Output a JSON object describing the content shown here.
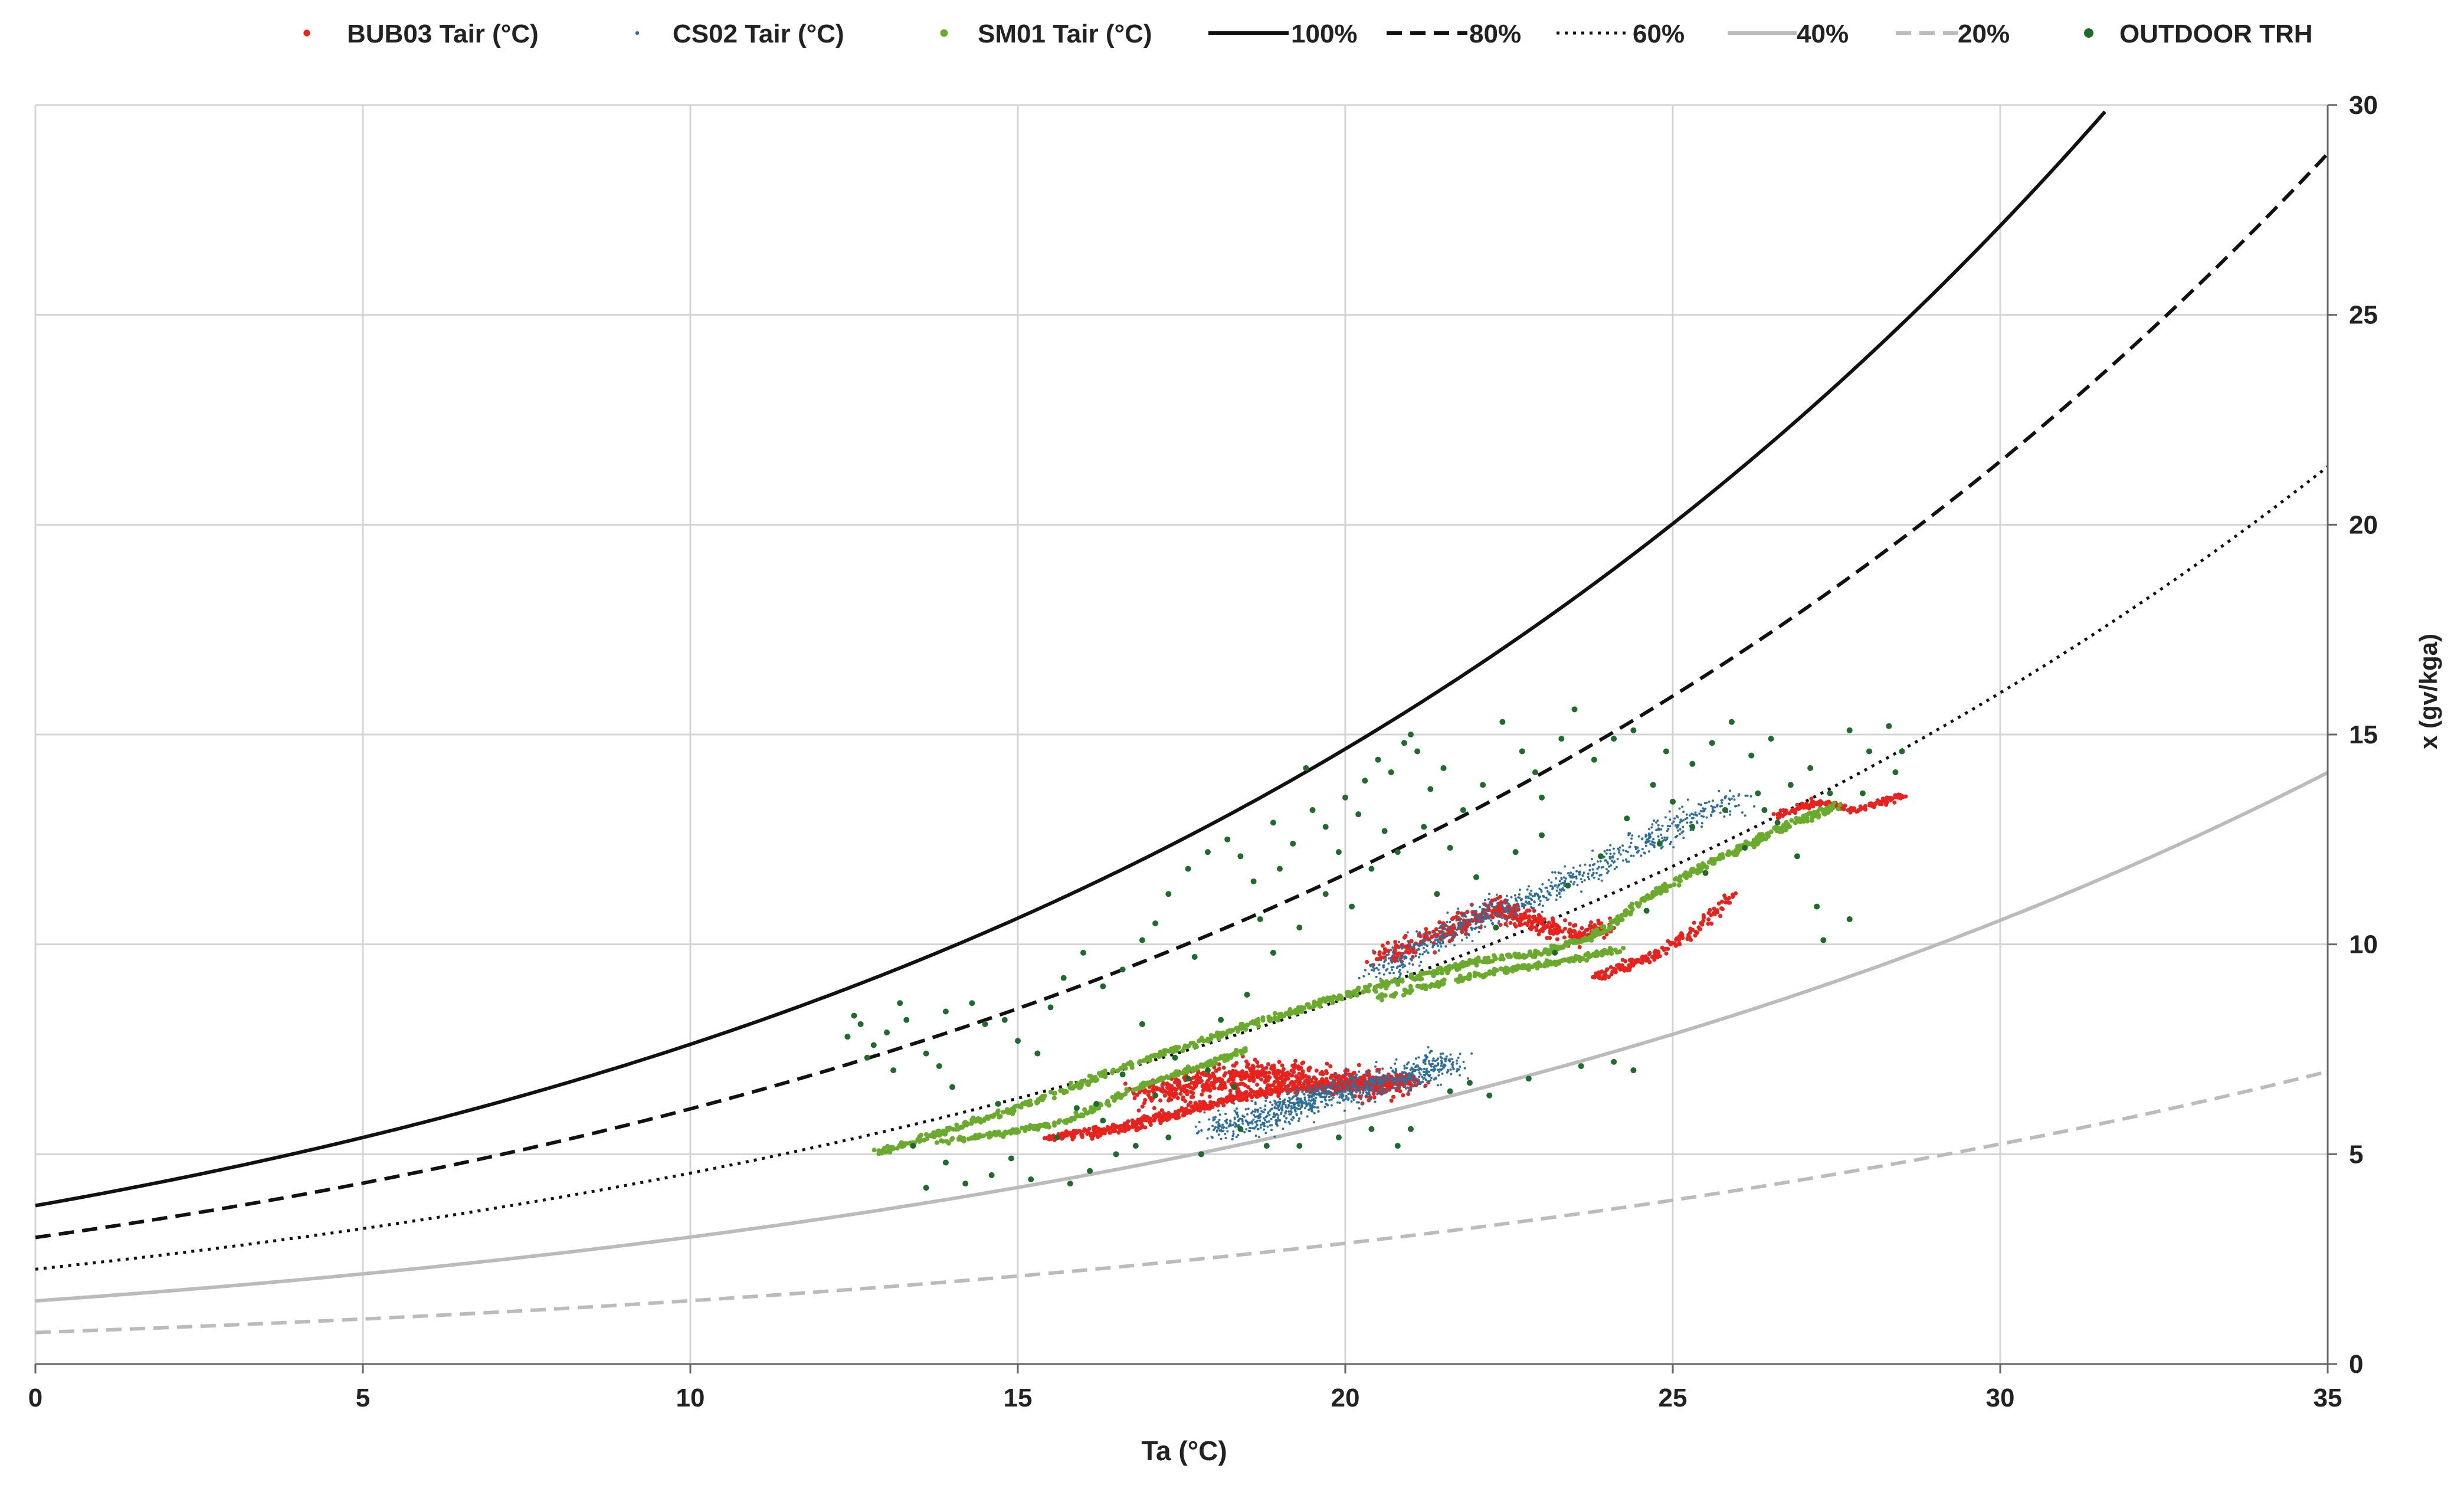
{
  "chart_data": {
    "type": "scatter",
    "title": "",
    "xlabel": "Ta (°C)",
    "ylabel": "x (gv/kga)",
    "xlim": [
      0,
      35
    ],
    "ylim": [
      0,
      30
    ],
    "xticks": [
      0,
      5,
      10,
      15,
      20,
      25,
      30,
      35
    ],
    "xtick_labels": [
      "0",
      "5",
      "10",
      "15",
      "20",
      "25",
      "30",
      "35"
    ],
    "yticks": [
      0,
      5,
      10,
      15,
      20,
      25,
      30
    ],
    "ytick_labels": [
      "0",
      "5",
      "10",
      "15",
      "20",
      "25",
      "30"
    ],
    "y_axis_side": "right",
    "grid": true,
    "legend_position": "top",
    "legend": [
      {
        "label": "BUB03 Tair (°C)",
        "kind": "marker",
        "color": "#e8221c",
        "size": 7
      },
      {
        "label": "CS02 Tair (°C)",
        "kind": "marker",
        "color": "#2e6f9a",
        "size": 4
      },
      {
        "label": "SM01 Tair (°C)",
        "kind": "marker",
        "color": "#6aaa2c",
        "size": 8
      },
      {
        "label": "100%",
        "kind": "line",
        "color": "#111111",
        "dash": "solid"
      },
      {
        "label": "80%",
        "kind": "line",
        "color": "#111111",
        "dash": "dashed"
      },
      {
        "label": "60%",
        "kind": "line",
        "color": "#111111",
        "dash": "dotted"
      },
      {
        "label": "40%",
        "kind": "line",
        "color": "#bbbbbb",
        "dash": "solid"
      },
      {
        "label": "20%",
        "kind": "line",
        "color": "#bbbbbb",
        "dash": "dashed"
      },
      {
        "label": "OUTDOOR TRH",
        "kind": "marker",
        "color": "#1e6b2a",
        "size": 10
      }
    ],
    "rh_curves": [
      {
        "name": "100%",
        "rh": 1.0,
        "color": "#111111",
        "style": "solid"
      },
      {
        "name": "80%",
        "rh": 0.8,
        "color": "#111111",
        "style": "dashed"
      },
      {
        "name": "60%",
        "rh": 0.6,
        "color": "#111111",
        "style": "dotted"
      },
      {
        "name": "40%",
        "rh": 0.4,
        "color": "#bbbbbb",
        "style": "solid"
      },
      {
        "name": "20%",
        "rh": 0.2,
        "color": "#bbbbbb",
        "style": "dashed"
      }
    ],
    "scatter_series": [
      {
        "name": "OUTDOOR TRH",
        "color": "#1e6b2a",
        "radius": 5,
        "points": [
          [
            12.4,
            7.8
          ],
          [
            12.6,
            8.1
          ],
          [
            12.8,
            7.6
          ],
          [
            12.5,
            8.3
          ],
          [
            13.0,
            7.9
          ],
          [
            13.3,
            8.2
          ],
          [
            13.6,
            7.4
          ],
          [
            13.9,
            8.4
          ],
          [
            14.3,
            8.6
          ],
          [
            14.8,
            8.2
          ],
          [
            15.3,
            7.4
          ],
          [
            15.7,
            9.2
          ],
          [
            16.0,
            9.8
          ],
          [
            16.3,
            9.0
          ],
          [
            16.6,
            9.4
          ],
          [
            16.9,
            10.1
          ],
          [
            17.1,
            10.5
          ],
          [
            17.3,
            11.2
          ],
          [
            17.6,
            11.8
          ],
          [
            17.9,
            12.2
          ],
          [
            18.2,
            12.5
          ],
          [
            18.4,
            12.1
          ],
          [
            18.6,
            11.5
          ],
          [
            18.9,
            12.9
          ],
          [
            19.2,
            12.4
          ],
          [
            19.5,
            13.2
          ],
          [
            19.7,
            12.8
          ],
          [
            20.0,
            13.5
          ],
          [
            20.3,
            13.9
          ],
          [
            20.5,
            14.4
          ],
          [
            20.7,
            14.1
          ],
          [
            20.9,
            14.8
          ],
          [
            21.1,
            14.6
          ],
          [
            21.3,
            13.7
          ],
          [
            21.5,
            14.2
          ],
          [
            21.8,
            13.2
          ],
          [
            22.1,
            13.8
          ],
          [
            22.4,
            15.3
          ],
          [
            22.7,
            14.6
          ],
          [
            23.0,
            13.5
          ],
          [
            23.3,
            14.9
          ],
          [
            23.5,
            15.6
          ],
          [
            23.8,
            14.4
          ],
          [
            24.1,
            14.9
          ],
          [
            24.4,
            15.1
          ],
          [
            24.7,
            13.8
          ],
          [
            25.0,
            13.4
          ],
          [
            25.3,
            14.3
          ],
          [
            25.6,
            14.8
          ],
          [
            25.9,
            15.3
          ],
          [
            26.2,
            14.5
          ],
          [
            26.5,
            14.9
          ],
          [
            26.8,
            13.8
          ],
          [
            27.1,
            14.2
          ],
          [
            27.4,
            13.6
          ],
          [
            27.7,
            15.1
          ],
          [
            28.0,
            14.6
          ],
          [
            28.3,
            15.2
          ],
          [
            28.5,
            14.6
          ],
          [
            26.9,
            12.1
          ],
          [
            27.2,
            10.9
          ],
          [
            27.7,
            10.6
          ],
          [
            27.3,
            10.1
          ],
          [
            24.1,
            7.2
          ],
          [
            24.4,
            7.0
          ],
          [
            23.6,
            7.1
          ],
          [
            22.8,
            6.8
          ],
          [
            22.2,
            6.4
          ],
          [
            21.9,
            6.7
          ],
          [
            21.6,
            6.5
          ],
          [
            21.0,
            5.6
          ],
          [
            20.8,
            5.2
          ],
          [
            20.4,
            5.6
          ],
          [
            19.9,
            5.4
          ],
          [
            19.3,
            5.2
          ],
          [
            18.8,
            5.2
          ],
          [
            18.4,
            5.6
          ],
          [
            17.8,
            5.0
          ],
          [
            17.3,
            5.4
          ],
          [
            16.8,
            5.2
          ],
          [
            16.3,
            5.8
          ],
          [
            15.9,
            6.1
          ],
          [
            15.6,
            5.4
          ],
          [
            15.2,
            4.4
          ],
          [
            14.9,
            4.9
          ],
          [
            14.6,
            4.5
          ],
          [
            14.2,
            4.3
          ],
          [
            13.9,
            4.8
          ],
          [
            13.6,
            4.2
          ],
          [
            13.4,
            5.2
          ],
          [
            15.8,
            4.3
          ],
          [
            16.1,
            4.6
          ],
          [
            16.5,
            5.0
          ],
          [
            17.1,
            6.4
          ],
          [
            17.6,
            6.8
          ],
          [
            18.1,
            8.2
          ],
          [
            18.5,
            8.8
          ],
          [
            18.9,
            9.8
          ],
          [
            19.3,
            10.4
          ],
          [
            19.7,
            11.2
          ],
          [
            20.1,
            10.9
          ],
          [
            20.4,
            11.8
          ],
          [
            20.8,
            12.2
          ],
          [
            21.2,
            12.8
          ],
          [
            21.6,
            12.3
          ],
          [
            22.0,
            11.6
          ],
          [
            22.6,
            12.2
          ],
          [
            23.0,
            12.6
          ],
          [
            23.4,
            11.4
          ],
          [
            23.9,
            12.1
          ],
          [
            24.3,
            13.0
          ],
          [
            24.8,
            12.4
          ],
          [
            25.3,
            12.8
          ],
          [
            25.8,
            13.2
          ],
          [
            26.3,
            13.6
          ],
          [
            26.6,
            12.9
          ],
          [
            16.2,
            6.2
          ],
          [
            16.6,
            6.9
          ],
          [
            17.4,
            7.3
          ],
          [
            17.9,
            7.0
          ],
          [
            18.3,
            6.6
          ],
          [
            14.5,
            8.1
          ],
          [
            13.2,
            8.6
          ],
          [
            13.8,
            7.1
          ],
          [
            15.0,
            7.7
          ],
          [
            15.5,
            8.5
          ],
          [
            16.9,
            8.1
          ],
          [
            17.7,
            9.7
          ],
          [
            18.7,
            10.6
          ],
          [
            19.0,
            11.8
          ],
          [
            19.9,
            12.2
          ],
          [
            20.6,
            12.7
          ],
          [
            21.4,
            11.2
          ],
          [
            22.3,
            10.4
          ],
          [
            23.2,
            9.8
          ],
          [
            24.6,
            10.8
          ],
          [
            25.5,
            11.7
          ],
          [
            26.1,
            12.3
          ],
          [
            20.2,
            13.1
          ],
          [
            19.4,
            14.2
          ],
          [
            21.0,
            15.0
          ],
          [
            22.9,
            14.1
          ],
          [
            24.9,
            14.6
          ],
          [
            26.4,
            13.2
          ],
          [
            27.9,
            13.6
          ],
          [
            28.4,
            14.1
          ],
          [
            12.7,
            7.3
          ],
          [
            13.1,
            7.0
          ],
          [
            14.0,
            6.6
          ],
          [
            14.7,
            6.2
          ]
        ]
      }
    ],
    "cloud_series": [
      {
        "name": "SM01 Tair (°C)",
        "color": "#6aaa2c",
        "radius": 4,
        "spread": 0.12,
        "path": [
          [
            12.8,
            5.0
          ],
          [
            14.0,
            5.6
          ],
          [
            15.0,
            6.1
          ],
          [
            16.0,
            6.7
          ],
          [
            17.0,
            7.3
          ],
          [
            18.0,
            7.8
          ],
          [
            19.0,
            8.3
          ],
          [
            20.0,
            8.8
          ],
          [
            21.0,
            9.2
          ],
          [
            22.0,
            9.6
          ],
          [
            23.0,
            9.8
          ],
          [
            23.8,
            10.2
          ],
          [
            24.5,
            11.0
          ],
          [
            25.5,
            11.9
          ],
          [
            26.3,
            12.5
          ],
          [
            27.0,
            13.0
          ],
          [
            27.5,
            13.3
          ]
        ],
        "count": 900
      },
      {
        "name": "SM01 Tair (°C)",
        "color": "#6aaa2c",
        "radius": 4,
        "spread": 0.1,
        "path": [
          [
            13.8,
            5.3
          ],
          [
            14.8,
            5.5
          ],
          [
            15.8,
            5.8
          ],
          [
            16.8,
            6.6
          ],
          [
            17.8,
            7.1
          ],
          [
            18.5,
            7.5
          ]
        ],
        "count": 260
      },
      {
        "name": "SM01 Tair (°C)",
        "color": "#6aaa2c",
        "radius": 4,
        "spread": 0.1,
        "path": [
          [
            20.5,
            8.7
          ],
          [
            21.5,
            9.1
          ],
          [
            22.5,
            9.4
          ],
          [
            23.4,
            9.6
          ],
          [
            24.2,
            9.9
          ]
        ],
        "count": 220
      },
      {
        "name": "BUB03 Tair (°C)",
        "color": "#e8221c",
        "radius": 3.5,
        "spread": 0.18,
        "path": [
          [
            15.5,
            5.4
          ],
          [
            16.5,
            5.6
          ],
          [
            17.5,
            6.0
          ],
          [
            18.5,
            6.4
          ],
          [
            19.5,
            6.6
          ],
          [
            20.5,
            6.7
          ],
          [
            21.0,
            6.8
          ]
        ],
        "count": 700
      },
      {
        "name": "BUB03 Tair (°C)",
        "color": "#e8221c",
        "radius": 3.5,
        "spread": 0.55,
        "path": [
          [
            17.0,
            6.4
          ],
          [
            18.0,
            6.8
          ],
          [
            19.0,
            6.9
          ],
          [
            20.0,
            6.7
          ],
          [
            20.8,
            6.6
          ]
        ],
        "count": 650
      },
      {
        "name": "BUB03 Tair (°C)",
        "color": "#e8221c",
        "radius": 3.5,
        "spread": 0.35,
        "path": [
          [
            20.5,
            9.6
          ],
          [
            21.5,
            10.3
          ],
          [
            22.3,
            10.9
          ],
          [
            22.8,
            10.6
          ],
          [
            23.5,
            10.2
          ],
          [
            24.0,
            10.4
          ]
        ],
        "count": 420
      },
      {
        "name": "BUB03 Tair (°C)",
        "color": "#e8221c",
        "radius": 3.5,
        "spread": 0.15,
        "path": [
          [
            23.8,
            9.2
          ],
          [
            24.3,
            9.5
          ],
          [
            24.8,
            9.8
          ],
          [
            25.3,
            10.3
          ],
          [
            25.9,
            11.2
          ]
        ],
        "count": 180
      },
      {
        "name": "BUB03 Tair (°C)",
        "color": "#e8221c",
        "radius": 3.5,
        "spread": 0.12,
        "path": [
          [
            26.5,
            13.0
          ],
          [
            27.2,
            13.4
          ],
          [
            27.8,
            13.2
          ],
          [
            28.6,
            13.6
          ]
        ],
        "count": 160
      },
      {
        "name": "CS02 Tair (°C)",
        "color": "#2e6f9a",
        "radius": 2,
        "spread": 0.55,
        "path": [
          [
            18.0,
            5.6
          ],
          [
            18.8,
            5.9
          ],
          [
            19.5,
            6.3
          ],
          [
            20.2,
            6.6
          ],
          [
            21.0,
            6.9
          ],
          [
            21.6,
            7.2
          ]
        ],
        "count": 900
      },
      {
        "name": "CS02 Tair (°C)",
        "color": "#2e6f9a",
        "radius": 2,
        "spread": 0.45,
        "path": [
          [
            20.5,
            9.3
          ],
          [
            21.2,
            10.0
          ],
          [
            22.0,
            10.6
          ],
          [
            22.8,
            11.0
          ],
          [
            23.5,
            11.6
          ],
          [
            24.3,
            12.2
          ],
          [
            25.0,
            12.8
          ],
          [
            26.0,
            13.5
          ]
        ],
        "count": 750
      }
    ]
  }
}
